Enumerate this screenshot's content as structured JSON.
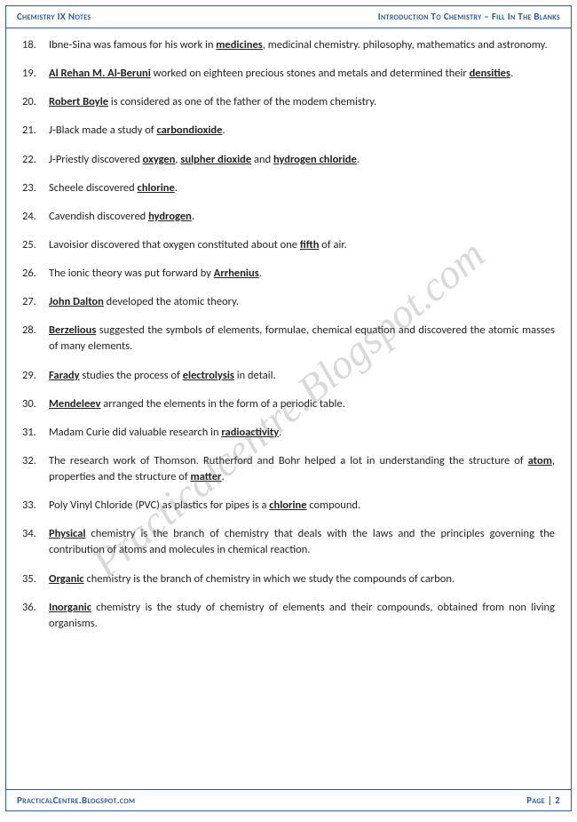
{
  "header": {
    "left": "Chemistry IX Notes",
    "right": "Introduction To Chemistry – Fill In The Blanks"
  },
  "footer": {
    "left": "PracticalCentre.Blogspot.com",
    "right_label": "Page | ",
    "right_num": "2"
  },
  "watermark": "Practicalcentre.Blogspot.com",
  "items": [
    {
      "n": "18.",
      "pre": "Ibne-Sina was famous for his work in ",
      "k1": "medicines",
      "post": ", medicinal chemistry. philosophy, mathematics and astronomy."
    },
    {
      "n": "19.",
      "k1": "Al Rehan M. Al-Beruni",
      "mid": " worked on eighteen precious stones and metals and determined their ",
      "k2": "densities",
      "post": "."
    },
    {
      "n": "20.",
      "k1": "Robert Boyle",
      "post": " is considered as one of the father of the modem chemistry."
    },
    {
      "n": "21.",
      "pre": "J-Black made a study of ",
      "k1": "carbondioxide",
      "post": "."
    },
    {
      "n": "22.",
      "pre": "J-Priestly discovered ",
      "k1": "oxygen",
      "mid": ", ",
      "k2": "sulpher dioxide",
      "mid2": " and ",
      "k3": "hydrogen chloride",
      "post": "."
    },
    {
      "n": "23.",
      "pre": "Scheele discovered ",
      "k1": "chlorine",
      "post": "."
    },
    {
      "n": "24.",
      "pre": "Cavendish discovered ",
      "k1": "hydrogen",
      "post": "."
    },
    {
      "n": "25.",
      "pre": "Lavoisior discovered that oxygen constituted about one ",
      "k1": "fifth",
      "post": " of air."
    },
    {
      "n": "26.",
      "pre": "The ionic theory was put forward by ",
      "k1": "Arrhenius",
      "post": "."
    },
    {
      "n": "27.",
      "k1": "John Dalton",
      "post": " developed the atomic theory."
    },
    {
      "n": "28.",
      "k1": "Berzelious",
      "post": " suggested the symbols of elements, formulae, chemical equation and discovered the atomic masses of many elements."
    },
    {
      "n": "29.",
      "k1": "Farady",
      "mid": " studies the process of ",
      "k2": "electrolysis",
      "post": " in detail."
    },
    {
      "n": "30.",
      "k1": "Mendeleev",
      "post": " arranged the elements in the form of a periodic table."
    },
    {
      "n": "31.",
      "pre": "Madam Curie did valuable research in ",
      "k1": "radioactivity",
      "post": "."
    },
    {
      "n": "32.",
      "pre": "The research work of Thomson. Rutherford and Bohr helped a lot in understanding the structure of ",
      "k1": "atom",
      "mid": ", properties and the structure of ",
      "k2": "matter",
      "post": "."
    },
    {
      "n": "33.",
      "pre": "Poly Vinyl Chloride (PVC) as plastics for pipes is a ",
      "k1": "chlorine",
      "post": " compound."
    },
    {
      "n": "34.",
      "k1": "Physical",
      "post": " chemistry is the branch of chemistry that deals with the laws and the principles governing the contribution of atoms and molecules in chemical reaction."
    },
    {
      "n": "35.",
      "k1": "Organic",
      "post": " chemistry is the branch of chemistry in which we study the compounds of carbon."
    },
    {
      "n": "36.",
      "k1": "Inorganic",
      "post": " chemistry is the study of chemistry of elements and their compounds, obtained from non living organisms."
    }
  ]
}
